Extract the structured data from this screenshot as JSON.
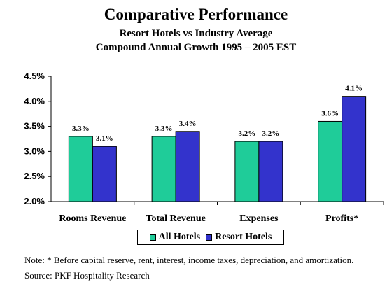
{
  "chart_data": {
    "type": "bar",
    "title": "Comparative Performance",
    "subtitle_lines": [
      "Resort Hotels vs Industry Average",
      "Compound Annual Growth 1995 – 2005 EST"
    ],
    "categories": [
      "Rooms Revenue",
      "Total Revenue",
      "Expenses",
      "Profits*"
    ],
    "series": [
      {
        "name": "All Hotels",
        "values": [
          3.3,
          3.3,
          3.2,
          3.6
        ],
        "labels": [
          "3.3%",
          "3.3%",
          "3.2%",
          "3.6%"
        ],
        "color": "#1fcc99"
      },
      {
        "name": "Resort Hotels",
        "values": [
          3.1,
          3.4,
          3.2,
          4.1
        ],
        "labels": [
          "3.1%",
          "3.4%",
          "3.2%",
          "4.1%"
        ],
        "color": "#3333cc"
      }
    ],
    "ylim": [
      2.0,
      4.5
    ],
    "yticks": [
      2.0,
      2.5,
      3.0,
      3.5,
      4.0,
      4.5
    ],
    "ytick_labels": [
      "2.0%",
      "2.5%",
      "3.0%",
      "3.5%",
      "4.0%",
      "4.5%"
    ],
    "grid": false,
    "legend": "bottom"
  },
  "notes": {
    "note": "Note: * Before capital reserve, rent, interest, income taxes, depreciation, and amortization.",
    "source": "Source: PKF Hospitality Research"
  }
}
